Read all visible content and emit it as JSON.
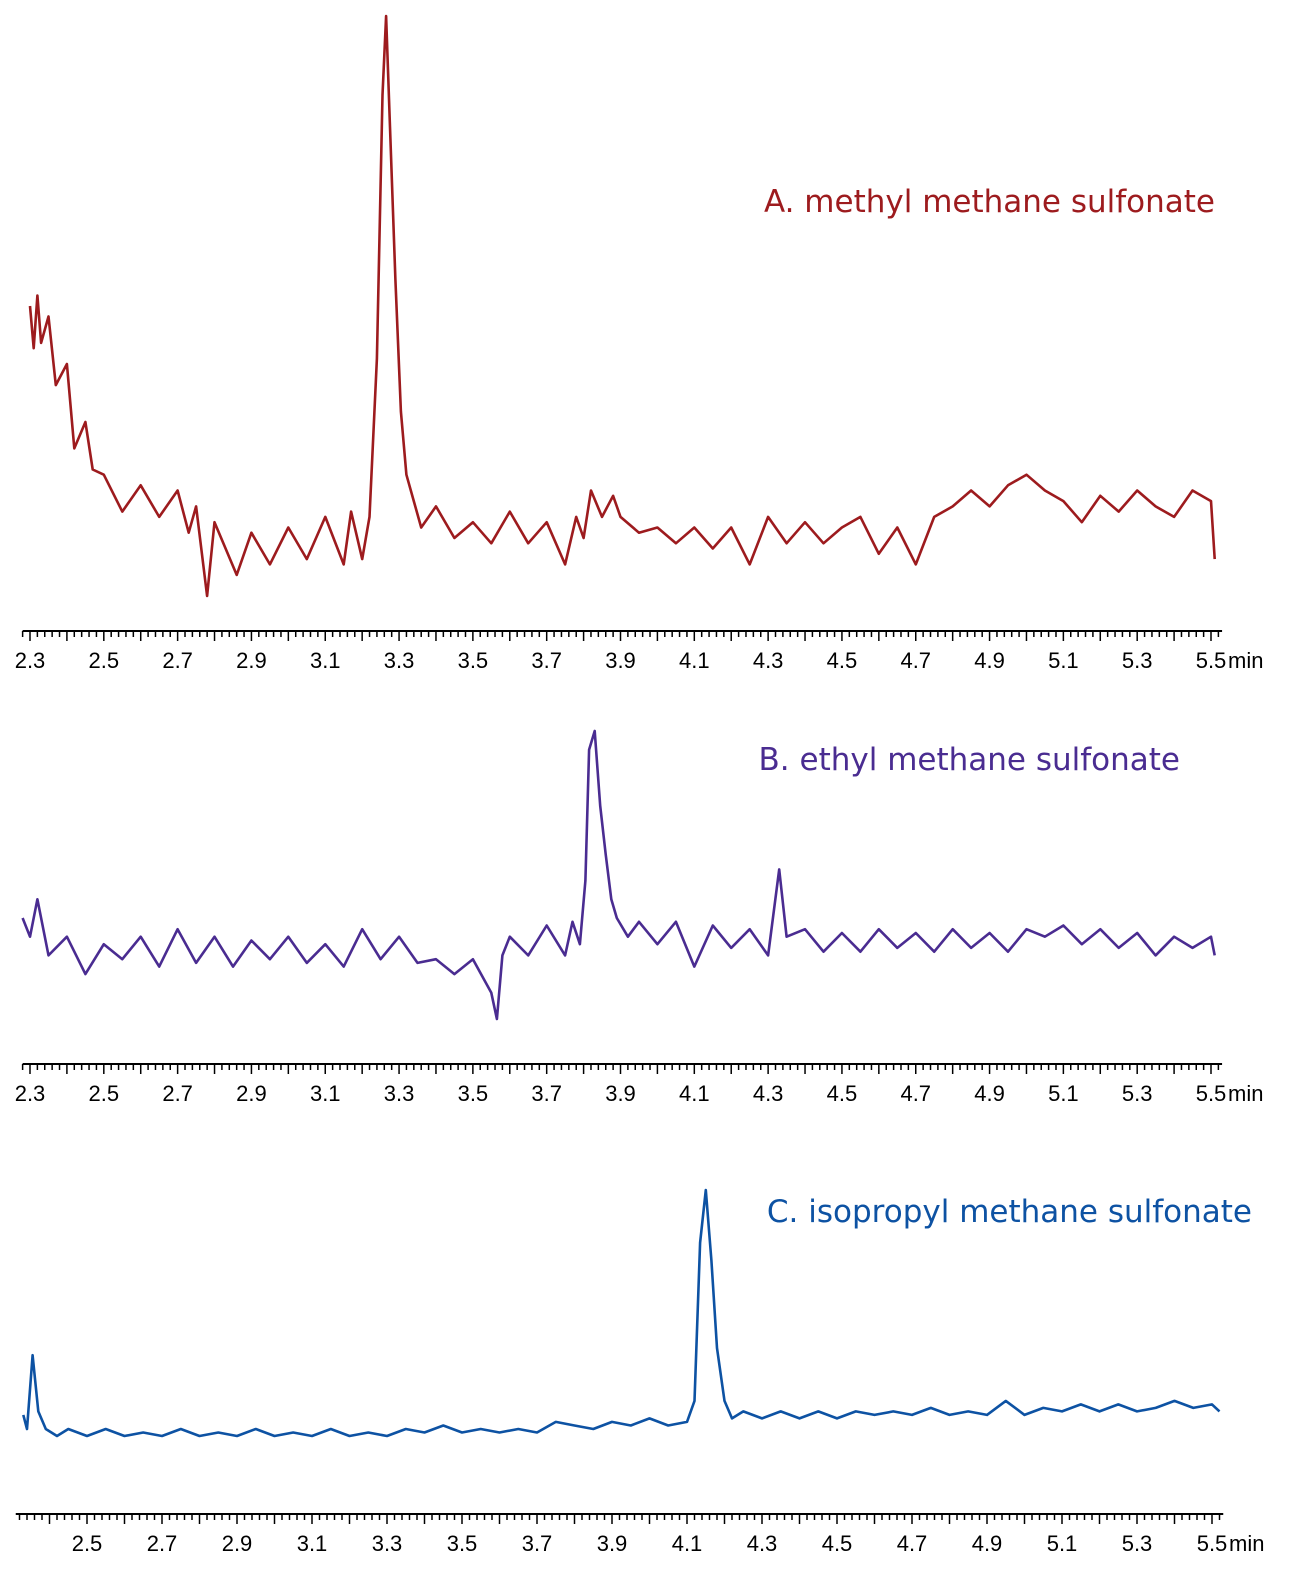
{
  "chart_data": [
    {
      "type": "line",
      "label": "A. methyl methane sulfonate",
      "color": "#9d1b1e",
      "x_unit": "min",
      "xlim": [
        2.28,
        5.53
      ],
      "ticks": [
        "2.3",
        "2.5",
        "2.7",
        "2.9",
        "3.1",
        "3.3",
        "3.5",
        "3.7",
        "3.9",
        "4.1",
        "4.3",
        "4.5",
        "4.7",
        "4.9",
        "5.1",
        "5.3",
        "5.5"
      ],
      "series": [
        {
          "values": [
            [
              2.3,
              0.45
            ],
            [
              2.31,
              0.37
            ],
            [
              2.32,
              0.47
            ],
            [
              2.33,
              0.38
            ],
            [
              2.35,
              0.43
            ],
            [
              2.37,
              0.3
            ],
            [
              2.4,
              0.34
            ],
            [
              2.42,
              0.18
            ],
            [
              2.45,
              0.23
            ],
            [
              2.47,
              0.14
            ],
            [
              2.5,
              0.13
            ],
            [
              2.55,
              0.06
            ],
            [
              2.6,
              0.11
            ],
            [
              2.65,
              0.05
            ],
            [
              2.7,
              0.1
            ],
            [
              2.73,
              0.02
            ],
            [
              2.75,
              0.07
            ],
            [
              2.78,
              -0.1
            ],
            [
              2.8,
              0.04
            ],
            [
              2.86,
              -0.06
            ],
            [
              2.9,
              0.02
            ],
            [
              2.95,
              -0.04
            ],
            [
              3.0,
              0.03
            ],
            [
              3.05,
              -0.03
            ],
            [
              3.1,
              0.05
            ],
            [
              3.15,
              -0.04
            ],
            [
              3.17,
              0.06
            ],
            [
              3.2,
              -0.03
            ],
            [
              3.22,
              0.05
            ],
            [
              3.24,
              0.35
            ],
            [
              3.255,
              0.85
            ],
            [
              3.265,
              1.0
            ],
            [
              3.275,
              0.8
            ],
            [
              3.29,
              0.5
            ],
            [
              3.305,
              0.25
            ],
            [
              3.32,
              0.13
            ],
            [
              3.34,
              0.08
            ],
            [
              3.36,
              0.03
            ],
            [
              3.4,
              0.07
            ],
            [
              3.45,
              0.01
            ],
            [
              3.5,
              0.04
            ],
            [
              3.55,
              0.0
            ],
            [
              3.6,
              0.06
            ],
            [
              3.65,
              0.0
            ],
            [
              3.7,
              0.04
            ],
            [
              3.75,
              -0.04
            ],
            [
              3.78,
              0.05
            ],
            [
              3.8,
              0.01
            ],
            [
              3.82,
              0.1
            ],
            [
              3.85,
              0.05
            ],
            [
              3.88,
              0.09
            ],
            [
              3.9,
              0.05
            ],
            [
              3.95,
              0.02
            ],
            [
              4.0,
              0.03
            ],
            [
              4.05,
              0.0
            ],
            [
              4.1,
              0.03
            ],
            [
              4.15,
              -0.01
            ],
            [
              4.2,
              0.03
            ],
            [
              4.25,
              -0.04
            ],
            [
              4.3,
              0.05
            ],
            [
              4.35,
              0.0
            ],
            [
              4.4,
              0.04
            ],
            [
              4.45,
              0.0
            ],
            [
              4.5,
              0.03
            ],
            [
              4.55,
              0.05
            ],
            [
              4.6,
              -0.02
            ],
            [
              4.65,
              0.03
            ],
            [
              4.7,
              -0.04
            ],
            [
              4.75,
              0.05
            ],
            [
              4.8,
              0.07
            ],
            [
              4.85,
              0.1
            ],
            [
              4.9,
              0.07
            ],
            [
              4.95,
              0.11
            ],
            [
              5.0,
              0.13
            ],
            [
              5.05,
              0.1
            ],
            [
              5.1,
              0.08
            ],
            [
              5.15,
              0.04
            ],
            [
              5.2,
              0.09
            ],
            [
              5.25,
              0.06
            ],
            [
              5.3,
              0.1
            ],
            [
              5.35,
              0.07
            ],
            [
              5.4,
              0.05
            ],
            [
              5.45,
              0.1
            ],
            [
              5.5,
              0.08
            ],
            [
              5.51,
              -0.03
            ]
          ]
        }
      ]
    },
    {
      "type": "line",
      "label": "B. ethyl methane sulfonate",
      "color": "#4a2c91",
      "x_unit": "min",
      "xlim": [
        2.28,
        5.53
      ],
      "ticks": [
        "2.3",
        "2.5",
        "2.7",
        "2.9",
        "3.1",
        "3.3",
        "3.5",
        "3.7",
        "3.9",
        "4.1",
        "4.3",
        "4.5",
        "4.7",
        "4.9",
        "5.1",
        "5.3",
        "5.5"
      ],
      "series": [
        {
          "values": [
            [
              2.28,
              0.15
            ],
            [
              2.3,
              0.1
            ],
            [
              2.32,
              0.2
            ],
            [
              2.35,
              0.05
            ],
            [
              2.4,
              0.1
            ],
            [
              2.45,
              0.0
            ],
            [
              2.5,
              0.08
            ],
            [
              2.55,
              0.04
            ],
            [
              2.6,
              0.1
            ],
            [
              2.65,
              0.02
            ],
            [
              2.7,
              0.12
            ],
            [
              2.75,
              0.03
            ],
            [
              2.8,
              0.1
            ],
            [
              2.85,
              0.02
            ],
            [
              2.9,
              0.09
            ],
            [
              2.95,
              0.04
            ],
            [
              3.0,
              0.1
            ],
            [
              3.05,
              0.03
            ],
            [
              3.1,
              0.08
            ],
            [
              3.15,
              0.02
            ],
            [
              3.2,
              0.12
            ],
            [
              3.25,
              0.04
            ],
            [
              3.3,
              0.1
            ],
            [
              3.35,
              0.03
            ],
            [
              3.4,
              0.04
            ],
            [
              3.45,
              0.0
            ],
            [
              3.5,
              0.04
            ],
            [
              3.55,
              -0.05
            ],
            [
              3.565,
              -0.12
            ],
            [
              3.58,
              0.05
            ],
            [
              3.6,
              0.1
            ],
            [
              3.65,
              0.05
            ],
            [
              3.7,
              0.13
            ],
            [
              3.75,
              0.05
            ],
            [
              3.77,
              0.14
            ],
            [
              3.79,
              0.08
            ],
            [
              3.805,
              0.25
            ],
            [
              3.815,
              0.6
            ],
            [
              3.83,
              0.65
            ],
            [
              3.845,
              0.45
            ],
            [
              3.86,
              0.32
            ],
            [
              3.875,
              0.2
            ],
            [
              3.89,
              0.15
            ],
            [
              3.92,
              0.1
            ],
            [
              3.95,
              0.14
            ],
            [
              4.0,
              0.08
            ],
            [
              4.05,
              0.14
            ],
            [
              4.1,
              0.02
            ],
            [
              4.15,
              0.13
            ],
            [
              4.2,
              0.07
            ],
            [
              4.25,
              0.12
            ],
            [
              4.3,
              0.05
            ],
            [
              4.33,
              0.28
            ],
            [
              4.35,
              0.1
            ],
            [
              4.4,
              0.12
            ],
            [
              4.45,
              0.06
            ],
            [
              4.5,
              0.11
            ],
            [
              4.55,
              0.06
            ],
            [
              4.6,
              0.12
            ],
            [
              4.65,
              0.07
            ],
            [
              4.7,
              0.11
            ],
            [
              4.75,
              0.06
            ],
            [
              4.8,
              0.12
            ],
            [
              4.85,
              0.07
            ],
            [
              4.9,
              0.11
            ],
            [
              4.95,
              0.06
            ],
            [
              5.0,
              0.12
            ],
            [
              5.05,
              0.1
            ],
            [
              5.1,
              0.13
            ],
            [
              5.15,
              0.08
            ],
            [
              5.2,
              0.12
            ],
            [
              5.25,
              0.07
            ],
            [
              5.3,
              0.11
            ],
            [
              5.35,
              0.05
            ],
            [
              5.4,
              0.1
            ],
            [
              5.45,
              0.07
            ],
            [
              5.5,
              0.1
            ],
            [
              5.51,
              0.05
            ]
          ]
        }
      ]
    },
    {
      "type": "line",
      "label": "C. isopropyl methane sulfonate",
      "color": "#0d52a3",
      "x_unit": "min",
      "xlim": [
        2.31,
        5.53
      ],
      "ticks": [
        "2.5",
        "2.7",
        "2.9",
        "3.1",
        "3.3",
        "3.5",
        "3.7",
        "3.9",
        "4.1",
        "4.3",
        "4.5",
        "4.7",
        "4.9",
        "5.1",
        "5.3",
        "5.5"
      ],
      "series": [
        {
          "values": [
            [
              2.33,
              0.06
            ],
            [
              2.34,
              0.02
            ],
            [
              2.355,
              0.23
            ],
            [
              2.37,
              0.07
            ],
            [
              2.39,
              0.02
            ],
            [
              2.42,
              0.0
            ],
            [
              2.45,
              0.02
            ],
            [
              2.5,
              0.0
            ],
            [
              2.55,
              0.02
            ],
            [
              2.6,
              0.0
            ],
            [
              2.65,
              0.01
            ],
            [
              2.7,
              0.0
            ],
            [
              2.75,
              0.02
            ],
            [
              2.8,
              0.0
            ],
            [
              2.85,
              0.01
            ],
            [
              2.9,
              0.0
            ],
            [
              2.95,
              0.02
            ],
            [
              3.0,
              0.0
            ],
            [
              3.05,
              0.01
            ],
            [
              3.1,
              0.0
            ],
            [
              3.15,
              0.02
            ],
            [
              3.2,
              0.0
            ],
            [
              3.25,
              0.01
            ],
            [
              3.3,
              0.0
            ],
            [
              3.35,
              0.02
            ],
            [
              3.4,
              0.01
            ],
            [
              3.45,
              0.03
            ],
            [
              3.5,
              0.01
            ],
            [
              3.55,
              0.02
            ],
            [
              3.6,
              0.01
            ],
            [
              3.65,
              0.02
            ],
            [
              3.7,
              0.01
            ],
            [
              3.75,
              0.04
            ],
            [
              3.8,
              0.03
            ],
            [
              3.85,
              0.02
            ],
            [
              3.9,
              0.04
            ],
            [
              3.95,
              0.03
            ],
            [
              4.0,
              0.05
            ],
            [
              4.05,
              0.03
            ],
            [
              4.1,
              0.04
            ],
            [
              4.12,
              0.1
            ],
            [
              4.135,
              0.55
            ],
            [
              4.15,
              0.7
            ],
            [
              4.165,
              0.5
            ],
            [
              4.18,
              0.25
            ],
            [
              4.2,
              0.1
            ],
            [
              4.22,
              0.05
            ],
            [
              4.25,
              0.07
            ],
            [
              4.3,
              0.05
            ],
            [
              4.35,
              0.07
            ],
            [
              4.4,
              0.05
            ],
            [
              4.45,
              0.07
            ],
            [
              4.5,
              0.05
            ],
            [
              4.55,
              0.07
            ],
            [
              4.6,
              0.06
            ],
            [
              4.65,
              0.07
            ],
            [
              4.7,
              0.06
            ],
            [
              4.75,
              0.08
            ],
            [
              4.8,
              0.06
            ],
            [
              4.85,
              0.07
            ],
            [
              4.9,
              0.06
            ],
            [
              4.95,
              0.1
            ],
            [
              5.0,
              0.06
            ],
            [
              5.05,
              0.08
            ],
            [
              5.1,
              0.07
            ],
            [
              5.15,
              0.09
            ],
            [
              5.2,
              0.07
            ],
            [
              5.25,
              0.09
            ],
            [
              5.3,
              0.07
            ],
            [
              5.35,
              0.08
            ],
            [
              5.4,
              0.1
            ],
            [
              5.45,
              0.08
            ],
            [
              5.5,
              0.09
            ],
            [
              5.52,
              0.07
            ]
          ]
        }
      ]
    }
  ]
}
